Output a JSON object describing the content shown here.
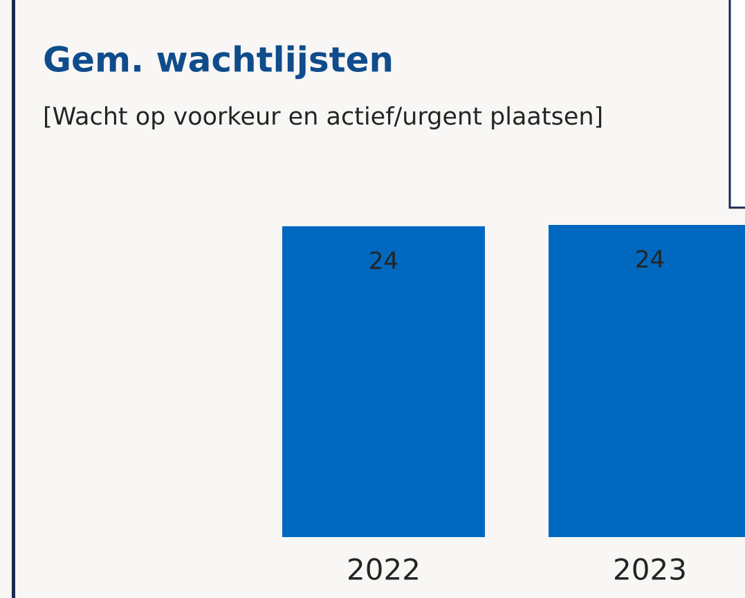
{
  "chart_data": {
    "type": "bar",
    "title": "Gem. wachtlijsten",
    "subtitle": "[Wacht op voorkeur en actief/urgent plaatsen]",
    "categories": [
      "2022",
      "2023"
    ],
    "values": [
      23.9,
      24
    ],
    "value_labels": [
      "24",
      "24"
    ],
    "color": "#0168bf",
    "ylim": [
      0,
      24
    ]
  }
}
